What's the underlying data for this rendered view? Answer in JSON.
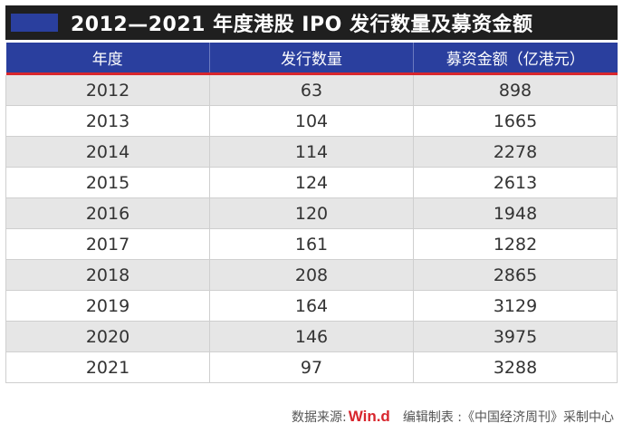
{
  "title": "2012—2021 年度港股 IPO 发行数量及募资金额",
  "colors": {
    "header_blue": "#2a3f9e",
    "title_bar": "#1f1f1f",
    "accent_red": "#d8262d"
  },
  "chart_data": {
    "type": "table",
    "title": "2012—2021 年度港股 IPO 发行数量及募资金额",
    "columns": [
      "年度",
      "发行数量",
      "募资金额（亿港元）"
    ],
    "rows": [
      [
        "2012",
        "63",
        "898"
      ],
      [
        "2013",
        "104",
        "1665"
      ],
      [
        "2014",
        "114",
        "2278"
      ],
      [
        "2015",
        "124",
        "2613"
      ],
      [
        "2016",
        "120",
        "1948"
      ],
      [
        "2017",
        "161",
        "1282"
      ],
      [
        "2018",
        "208",
        "2865"
      ],
      [
        "2019",
        "164",
        "3129"
      ],
      [
        "2020",
        "146",
        "3975"
      ],
      [
        "2021",
        "97",
        "3288"
      ]
    ]
  },
  "footer": {
    "source_label": "数据来源:",
    "source_brand": "Win.d",
    "editor_text": "编辑制表 :《中国经济周刊》采制中心"
  }
}
